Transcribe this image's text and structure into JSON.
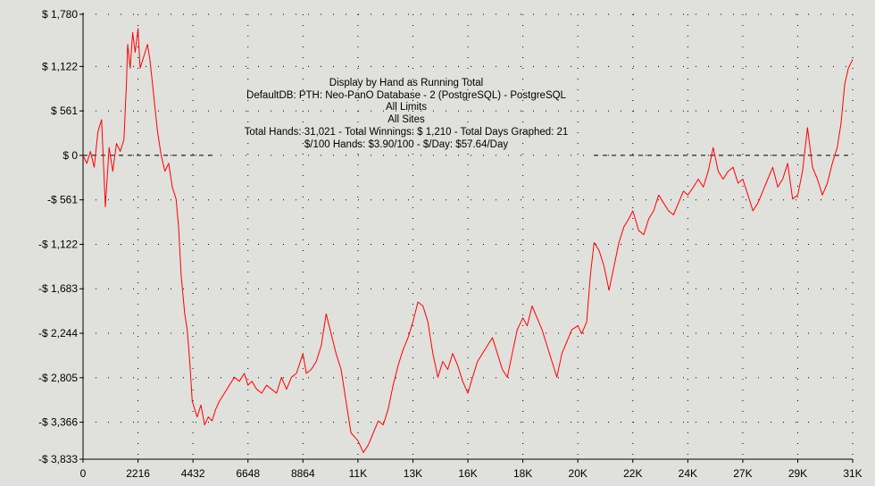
{
  "chart_data": {
    "type": "line",
    "title": "Display by Hand as Running Total",
    "subtitle_lines": [
      "DefaultDB: PTH: Neo-PanO Database - 2 (PostgreSQL) - PostgreSQL",
      "All Limits",
      "All Sites",
      "Total Hands: 31,021 - Total Winnings: $ 1,210 - Total Days Graphed: 21",
      "$/100 Hands: $3.90/100 - $/Day: $57.64/Day"
    ],
    "xlabel": "",
    "ylabel": "",
    "xlim": [
      0,
      31021
    ],
    "ylim": [
      -3833,
      1780
    ],
    "grid": true,
    "zero_line": true,
    "line_color": "#ff0000",
    "background_color": "#e0e0dc",
    "y_ticks": [
      {
        "value": 1780,
        "label": "$ 1,780"
      },
      {
        "value": 1122,
        "label": "$ 1,122"
      },
      {
        "value": 561,
        "label": "$ 561"
      },
      {
        "value": 0,
        "label": "$ 0"
      },
      {
        "value": -561,
        "label": "-$ 561"
      },
      {
        "value": -1122,
        "label": "-$ 1,122"
      },
      {
        "value": -1683,
        "label": "-$ 1,683"
      },
      {
        "value": -2244,
        "label": "-$ 2,244"
      },
      {
        "value": -2805,
        "label": "-$ 2,805"
      },
      {
        "value": -3366,
        "label": "-$ 3,366"
      },
      {
        "value": -3833,
        "label": "-$ 3,833"
      }
    ],
    "x_ticks": [
      {
        "value": 0,
        "label": "0"
      },
      {
        "value": 2216,
        "label": "2216"
      },
      {
        "value": 4432,
        "label": "4432"
      },
      {
        "value": 6648,
        "label": "6648"
      },
      {
        "value": 8864,
        "label": "8864"
      },
      {
        "value": 11080,
        "label": "11K"
      },
      {
        "value": 13296,
        "label": "13K"
      },
      {
        "value": 15512,
        "label": "16K"
      },
      {
        "value": 17728,
        "label": "18K"
      },
      {
        "value": 19944,
        "label": "20K"
      },
      {
        "value": 22160,
        "label": "22K"
      },
      {
        "value": 24376,
        "label": "24K"
      },
      {
        "value": 26592,
        "label": "27K"
      },
      {
        "value": 28808,
        "label": "29K"
      },
      {
        "value": 31021,
        "label": "31K"
      }
    ],
    "series": [
      {
        "values": [
          [
            0,
            0
          ],
          [
            150,
            -100
          ],
          [
            300,
            50
          ],
          [
            450,
            -150
          ],
          [
            600,
            300
          ],
          [
            750,
            450
          ],
          [
            900,
            -650
          ],
          [
            1050,
            100
          ],
          [
            1200,
            -200
          ],
          [
            1350,
            150
          ],
          [
            1500,
            50
          ],
          [
            1650,
            200
          ],
          [
            1750,
            900
          ],
          [
            1800,
            1400
          ],
          [
            1900,
            1100
          ],
          [
            2000,
            1550
          ],
          [
            2100,
            1300
          ],
          [
            2216,
            1600
          ],
          [
            2300,
            1100
          ],
          [
            2400,
            1200
          ],
          [
            2500,
            1300
          ],
          [
            2600,
            1400
          ],
          [
            2700,
            1200
          ],
          [
            2800,
            900
          ],
          [
            2900,
            600
          ],
          [
            3000,
            300
          ],
          [
            3150,
            0
          ],
          [
            3300,
            -200
          ],
          [
            3450,
            -100
          ],
          [
            3600,
            -400
          ],
          [
            3750,
            -550
          ],
          [
            3850,
            -900
          ],
          [
            3950,
            -1500
          ],
          [
            4100,
            -2000
          ],
          [
            4200,
            -2200
          ],
          [
            4300,
            -2600
          ],
          [
            4400,
            -3100
          ],
          [
            4500,
            -3200
          ],
          [
            4600,
            -3300
          ],
          [
            4750,
            -3150
          ],
          [
            4900,
            -3400
          ],
          [
            5050,
            -3300
          ],
          [
            5200,
            -3350
          ],
          [
            5350,
            -3200
          ],
          [
            5500,
            -3100
          ],
          [
            5700,
            -3000
          ],
          [
            5900,
            -2900
          ],
          [
            6100,
            -2800
          ],
          [
            6300,
            -2850
          ],
          [
            6500,
            -2750
          ],
          [
            6648,
            -2900
          ],
          [
            6800,
            -2850
          ],
          [
            7000,
            -2950
          ],
          [
            7200,
            -3000
          ],
          [
            7400,
            -2900
          ],
          [
            7600,
            -2950
          ],
          [
            7800,
            -3000
          ],
          [
            8000,
            -2800
          ],
          [
            8200,
            -2950
          ],
          [
            8400,
            -2800
          ],
          [
            8600,
            -2750
          ],
          [
            8864,
            -2500
          ],
          [
            9000,
            -2750
          ],
          [
            9200,
            -2700
          ],
          [
            9400,
            -2600
          ],
          [
            9600,
            -2400
          ],
          [
            9800,
            -2000
          ],
          [
            10000,
            -2250
          ],
          [
            10200,
            -2500
          ],
          [
            10400,
            -2700
          ],
          [
            10600,
            -3100
          ],
          [
            10800,
            -3500
          ],
          [
            11080,
            -3600
          ],
          [
            11300,
            -3750
          ],
          [
            11500,
            -3650
          ],
          [
            11700,
            -3500
          ],
          [
            11900,
            -3350
          ],
          [
            12100,
            -3400
          ],
          [
            12300,
            -3200
          ],
          [
            12500,
            -2900
          ],
          [
            12700,
            -2650
          ],
          [
            12900,
            -2450
          ],
          [
            13100,
            -2300
          ],
          [
            13296,
            -2100
          ],
          [
            13500,
            -1850
          ],
          [
            13700,
            -1900
          ],
          [
            13900,
            -2100
          ],
          [
            14100,
            -2500
          ],
          [
            14300,
            -2800
          ],
          [
            14500,
            -2600
          ],
          [
            14700,
            -2700
          ],
          [
            14900,
            -2500
          ],
          [
            15100,
            -2650
          ],
          [
            15300,
            -2850
          ],
          [
            15512,
            -3000
          ],
          [
            15700,
            -2800
          ],
          [
            15900,
            -2600
          ],
          [
            16100,
            -2500
          ],
          [
            16300,
            -2400
          ],
          [
            16500,
            -2300
          ],
          [
            16700,
            -2500
          ],
          [
            16900,
            -2700
          ],
          [
            17100,
            -2800
          ],
          [
            17300,
            -2500
          ],
          [
            17500,
            -2200
          ],
          [
            17728,
            -2050
          ],
          [
            17900,
            -2150
          ],
          [
            18100,
            -1900
          ],
          [
            18300,
            -2050
          ],
          [
            18500,
            -2200
          ],
          [
            18700,
            -2400
          ],
          [
            18900,
            -2600
          ],
          [
            19100,
            -2800
          ],
          [
            19300,
            -2500
          ],
          [
            19500,
            -2350
          ],
          [
            19700,
            -2200
          ],
          [
            19944,
            -2150
          ],
          [
            20100,
            -2250
          ],
          [
            20300,
            -2100
          ],
          [
            20450,
            -1500
          ],
          [
            20600,
            -1100
          ],
          [
            20800,
            -1200
          ],
          [
            21000,
            -1400
          ],
          [
            21200,
            -1700
          ],
          [
            21400,
            -1400
          ],
          [
            21600,
            -1100
          ],
          [
            21800,
            -900
          ],
          [
            22000,
            -800
          ],
          [
            22160,
            -700
          ],
          [
            22400,
            -950
          ],
          [
            22600,
            -1000
          ],
          [
            22800,
            -800
          ],
          [
            23000,
            -700
          ],
          [
            23200,
            -500
          ],
          [
            23400,
            -600
          ],
          [
            23600,
            -700
          ],
          [
            23800,
            -750
          ],
          [
            24000,
            -600
          ],
          [
            24200,
            -450
          ],
          [
            24376,
            -500
          ],
          [
            24600,
            -400
          ],
          [
            24800,
            -300
          ],
          [
            25000,
            -400
          ],
          [
            25200,
            -200
          ],
          [
            25400,
            100
          ],
          [
            25600,
            -200
          ],
          [
            25800,
            -300
          ],
          [
            26000,
            -200
          ],
          [
            26200,
            -150
          ],
          [
            26400,
            -350
          ],
          [
            26592,
            -300
          ],
          [
            26800,
            -500
          ],
          [
            27000,
            -700
          ],
          [
            27200,
            -600
          ],
          [
            27400,
            -450
          ],
          [
            27600,
            -300
          ],
          [
            27800,
            -150
          ],
          [
            28000,
            -400
          ],
          [
            28200,
            -300
          ],
          [
            28400,
            -100
          ],
          [
            28600,
            -550
          ],
          [
            28808,
            -500
          ],
          [
            29000,
            -200
          ],
          [
            29200,
            350
          ],
          [
            29400,
            -150
          ],
          [
            29600,
            -300
          ],
          [
            29800,
            -500
          ],
          [
            30000,
            -350
          ],
          [
            30200,
            -100
          ],
          [
            30400,
            100
          ],
          [
            30550,
            400
          ],
          [
            30700,
            900
          ],
          [
            30850,
            1100
          ],
          [
            31021,
            1210
          ]
        ]
      }
    ]
  }
}
